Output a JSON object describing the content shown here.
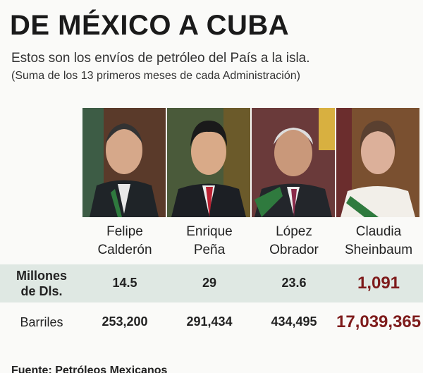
{
  "header": {
    "title": "DE MÉXICO A CUBA",
    "subtitle": "Estos son los envíos de petróleo del País a la isla.",
    "note": "(Suma de los 13 primeros meses de cada Administración)"
  },
  "table": {
    "columns": [
      [
        "Felipe",
        "Calderón"
      ],
      [
        "Enrique",
        "Peña"
      ],
      [
        "López",
        "Obrador"
      ],
      [
        "Claudia",
        "Sheinbaum"
      ]
    ],
    "rows": [
      {
        "label": [
          "Millones",
          "de Dls."
        ],
        "values": [
          "14.5",
          "29",
          "23.6",
          "1,091"
        ]
      },
      {
        "label": [
          "Barriles"
        ],
        "values": [
          "253,200",
          "291,434",
          "434,495",
          "17,039,365"
        ]
      }
    ]
  },
  "footer": {
    "source": "Fuente: Petróleos Mexicanos"
  }
}
